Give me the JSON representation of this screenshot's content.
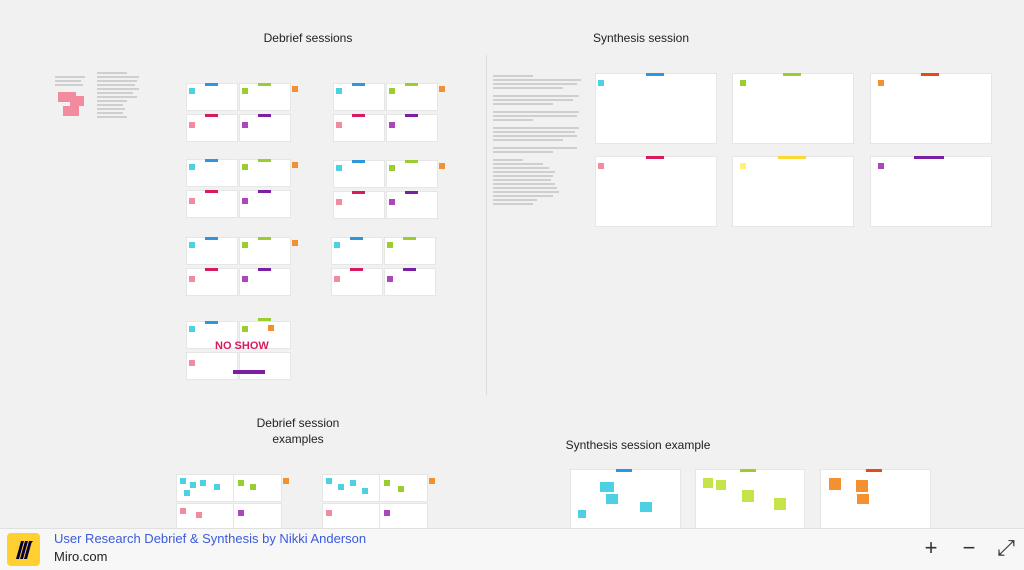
{
  "canvas": {
    "titles": {
      "debrief_sessions": "Debrief sessions",
      "synthesis_session": "Synthesis session",
      "debrief_examples": "Debrief session examples",
      "synthesis_example": "Synthesis session example"
    },
    "no_show_label": "NO SHOW"
  },
  "footer": {
    "board_title": "User Research Debrief & Synthesis by Nikki Anderson",
    "site": "Miro.com",
    "zoom_in_label": "+",
    "zoom_out_label": "−",
    "fullscreen_label": "⤢"
  },
  "colors": {
    "blue": "#2f95dc",
    "green": "#9acd32",
    "red": "#d81b60",
    "purple": "#7b1fa2",
    "orange": "#f4902f",
    "pink": "#f28ba0",
    "cyan": "#4dd0e1",
    "yellow": "#fff176",
    "brand_yellow": "#ffd02f"
  }
}
